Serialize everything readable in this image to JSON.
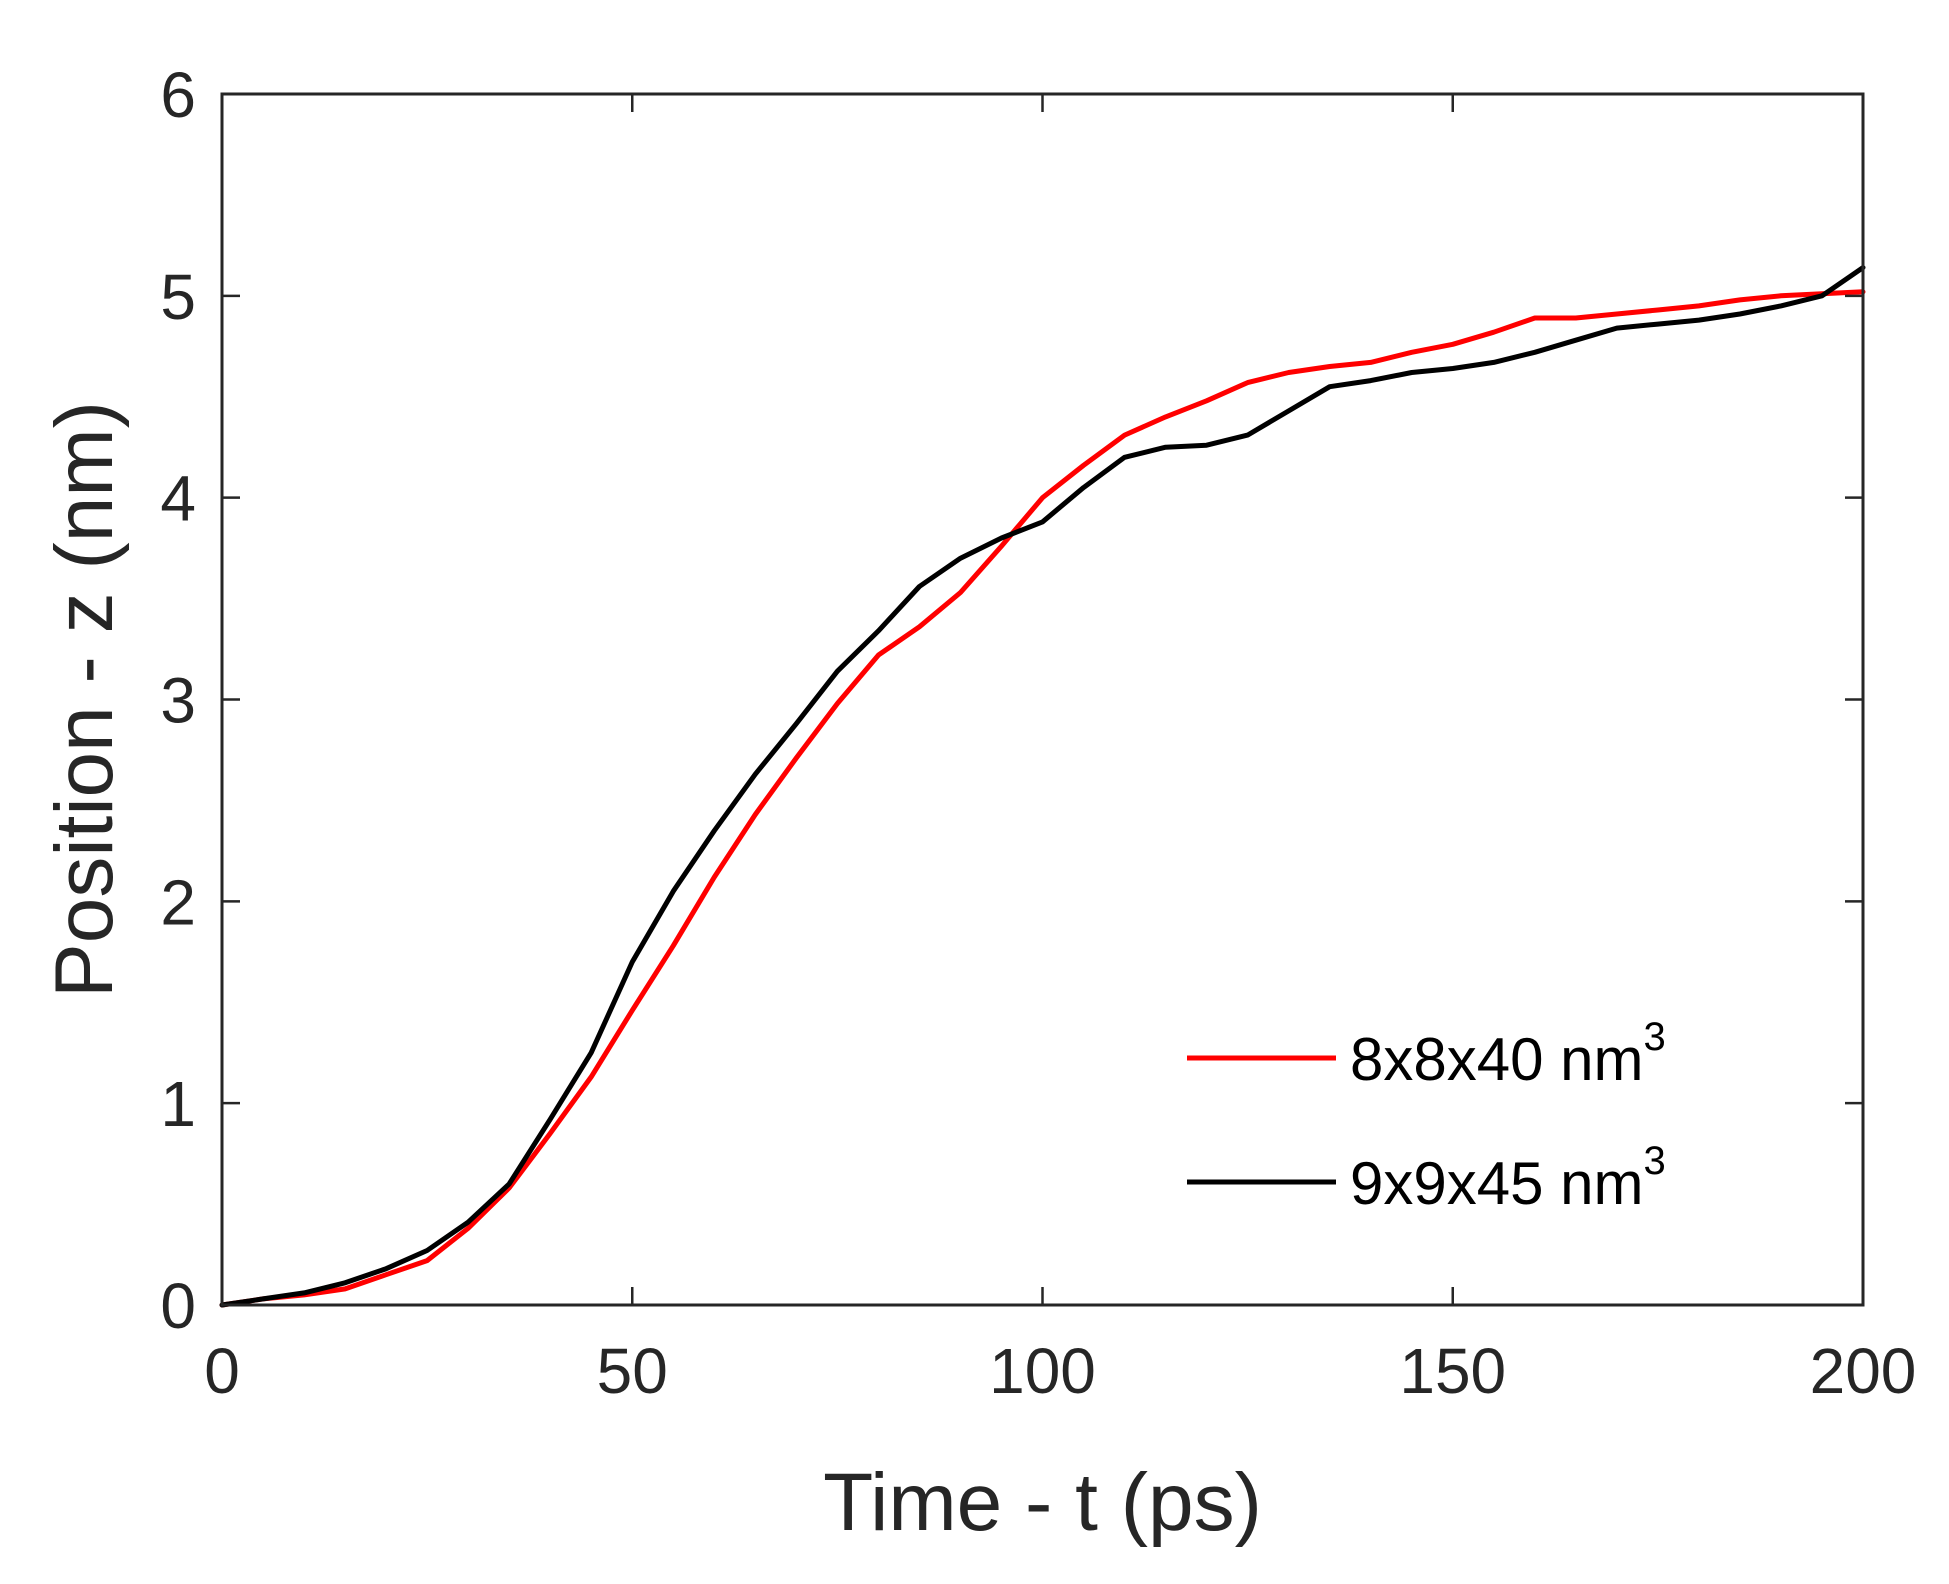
{
  "chart_data": {
    "type": "line",
    "xlabel": "Time - t (ps)",
    "ylabel": "Position - z (nm)",
    "xlim": [
      0,
      200
    ],
    "ylim": [
      0,
      6
    ],
    "xticks": [
      0,
      50,
      100,
      150,
      200
    ],
    "yticks": [
      0,
      1,
      2,
      3,
      4,
      5,
      6
    ],
    "xtick_labels": [
      "0",
      "50",
      "100",
      "150",
      "200"
    ],
    "ytick_labels": [
      "0",
      "1",
      "2",
      "3",
      "4",
      "5",
      "6"
    ],
    "grid": false,
    "legend_position": "bottom-right",
    "series": [
      {
        "name": "8x8x40 nm",
        "name_sup": "3",
        "color": "#ff0000",
        "x": [
          0,
          5,
          10,
          15,
          20,
          25,
          30,
          35,
          40,
          45,
          50,
          55,
          60,
          65,
          70,
          75,
          80,
          85,
          90,
          95,
          100,
          105,
          110,
          115,
          120,
          125,
          130,
          135,
          140,
          145,
          150,
          155,
          160,
          165,
          170,
          175,
          180,
          185,
          190,
          195,
          200
        ],
        "y": [
          0,
          0.03,
          0.05,
          0.08,
          0.15,
          0.22,
          0.38,
          0.58,
          0.85,
          1.13,
          1.46,
          1.78,
          2.12,
          2.43,
          2.71,
          2.98,
          3.22,
          3.36,
          3.53,
          3.76,
          4.0,
          4.16,
          4.31,
          4.4,
          4.48,
          4.57,
          4.62,
          4.65,
          4.67,
          4.72,
          4.76,
          4.82,
          4.89,
          4.89,
          4.91,
          4.93,
          4.95,
          4.98,
          5.0,
          5.01,
          5.02
        ]
      },
      {
        "name": "9x9x45 nm",
        "name_sup": "3",
        "color": "#000000",
        "x": [
          0,
          5,
          10,
          15,
          20,
          25,
          30,
          35,
          40,
          45,
          50,
          55,
          60,
          65,
          70,
          75,
          80,
          85,
          90,
          95,
          100,
          105,
          110,
          115,
          120,
          125,
          130,
          135,
          140,
          145,
          150,
          155,
          160,
          165,
          170,
          175,
          180,
          185,
          190,
          195,
          200
        ],
        "y": [
          0,
          0.03,
          0.06,
          0.11,
          0.18,
          0.27,
          0.41,
          0.6,
          0.92,
          1.25,
          1.7,
          2.05,
          2.35,
          2.63,
          2.88,
          3.14,
          3.34,
          3.56,
          3.7,
          3.8,
          3.88,
          4.05,
          4.2,
          4.25,
          4.26,
          4.31,
          4.43,
          4.55,
          4.58,
          4.62,
          4.64,
          4.67,
          4.72,
          4.78,
          4.84,
          4.86,
          4.88,
          4.91,
          4.95,
          5.0,
          5.14
        ]
      }
    ]
  }
}
